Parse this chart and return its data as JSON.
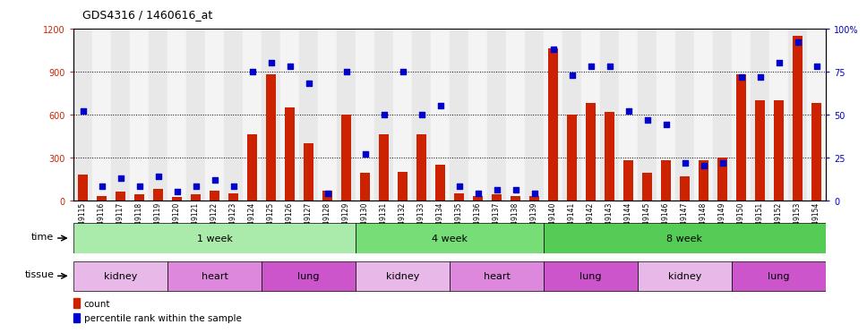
{
  "title": "GDS4316 / 1460616_at",
  "samples": [
    "GSM949115",
    "GSM949116",
    "GSM949117",
    "GSM949118",
    "GSM949119",
    "GSM949120",
    "GSM949121",
    "GSM949122",
    "GSM949123",
    "GSM949124",
    "GSM949125",
    "GSM949126",
    "GSM949127",
    "GSM949128",
    "GSM949129",
    "GSM949130",
    "GSM949131",
    "GSM949132",
    "GSM949133",
    "GSM949134",
    "GSM949135",
    "GSM949136",
    "GSM949137",
    "GSM949138",
    "GSM949139",
    "GSM949140",
    "GSM949141",
    "GSM949142",
    "GSM949143",
    "GSM949144",
    "GSM949145",
    "GSM949146",
    "GSM949147",
    "GSM949148",
    "GSM949149",
    "GSM949150",
    "GSM949151",
    "GSM949152",
    "GSM949153",
    "GSM949154"
  ],
  "counts": [
    180,
    30,
    60,
    40,
    80,
    25,
    40,
    70,
    50,
    460,
    880,
    650,
    400,
    70,
    600,
    190,
    460,
    200,
    460,
    250,
    50,
    30,
    40,
    30,
    30,
    1060,
    600,
    680,
    620,
    280,
    190,
    280,
    170,
    280,
    300,
    880,
    700,
    700,
    1150,
    680
  ],
  "percentiles": [
    52,
    8,
    13,
    8,
    14,
    5,
    8,
    12,
    8,
    75,
    80,
    78,
    68,
    4,
    75,
    27,
    50,
    75,
    50,
    55,
    8,
    4,
    6,
    6,
    4,
    88,
    73,
    78,
    78,
    52,
    47,
    44,
    22,
    20,
    22,
    72,
    72,
    80,
    92,
    78
  ],
  "ylim_left": [
    0,
    1200
  ],
  "ylim_right": [
    0,
    100
  ],
  "yticks_left": [
    0,
    300,
    600,
    900,
    1200
  ],
  "yticks_right": [
    0,
    25,
    50,
    75,
    100
  ],
  "bar_color": "#cc2200",
  "dot_color": "#0000cc",
  "time_groups": [
    {
      "label": "1 week",
      "start": 0,
      "end": 15,
      "color": "#aaeaaa"
    },
    {
      "label": "4 week",
      "start": 15,
      "end": 25,
      "color": "#77dd77"
    },
    {
      "label": "8 week",
      "start": 25,
      "end": 40,
      "color": "#55cc55"
    }
  ],
  "tissue_groups": [
    {
      "label": "kidney",
      "start": 0,
      "end": 5,
      "color": "#e8b8e8"
    },
    {
      "label": "heart",
      "start": 5,
      "end": 10,
      "color": "#dd88dd"
    },
    {
      "label": "lung",
      "start": 10,
      "end": 15,
      "color": "#cc55cc"
    },
    {
      "label": "kidney",
      "start": 15,
      "end": 20,
      "color": "#e8b8e8"
    },
    {
      "label": "heart",
      "start": 20,
      "end": 25,
      "color": "#dd88dd"
    },
    {
      "label": "lung",
      "start": 25,
      "end": 30,
      "color": "#cc55cc"
    },
    {
      "label": "kidney",
      "start": 30,
      "end": 35,
      "color": "#e8b8e8"
    },
    {
      "label": "lung",
      "start": 35,
      "end": 40,
      "color": "#cc55cc"
    }
  ],
  "background_color": "#ffffff",
  "plot_bg_color": "#ffffff",
  "col_even_color": "#e8e8e8",
  "col_odd_color": "#f4f4f4"
}
